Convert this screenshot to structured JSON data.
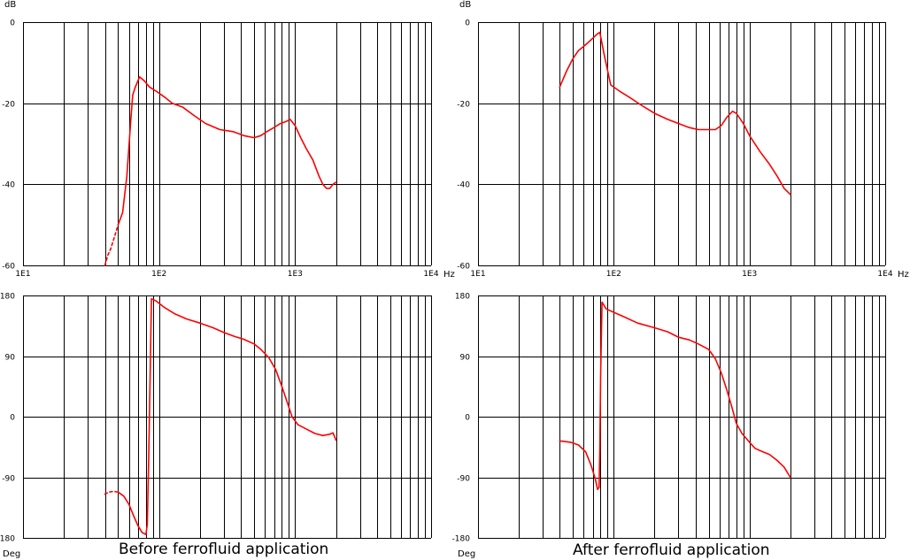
{
  "colors": {
    "curve": "#ff0000",
    "grid": "#000000",
    "background": "#ffffff"
  },
  "captions": {
    "left": "Before ferrofluid application",
    "right": "After ferrofluid application"
  },
  "chart_data": [
    {
      "type": "line",
      "title": "",
      "ylabel": "dB",
      "xlabel": "Hz",
      "xscale": "log",
      "xlim": [
        10,
        10000
      ],
      "ylim": [
        -60,
        0
      ],
      "x_tick_labels": [
        "1E1",
        "1E2",
        "1E3",
        "1E4"
      ],
      "y_tick_labels": [
        "0",
        "-20",
        "-40",
        "-60"
      ],
      "y_ticks": [
        0,
        -20,
        -40,
        -60
      ],
      "grid": true,
      "series": [
        {
          "style": "dashed",
          "points": [
            [
              40,
              -60
            ],
            [
              42,
              -57.5
            ],
            [
              44,
              -56
            ],
            [
              46,
              -54
            ],
            [
              48,
              -52
            ],
            [
              50,
              -50
            ]
          ]
        },
        {
          "style": "solid",
          "points": [
            [
              50,
              -50
            ],
            [
              54,
              -47
            ],
            [
              58,
              -38
            ],
            [
              62,
              -24
            ],
            [
              64,
              -18
            ],
            [
              67,
              -16
            ],
            [
              72,
              -13.5
            ],
            [
              78,
              -14.5
            ],
            [
              85,
              -16
            ],
            [
              95,
              -17
            ],
            [
              110,
              -18.5
            ],
            [
              125,
              -20
            ],
            [
              150,
              -21
            ],
            [
              180,
              -23
            ],
            [
              220,
              -25
            ],
            [
              280,
              -26.5
            ],
            [
              350,
              -27
            ],
            [
              420,
              -28
            ],
            [
              500,
              -28.5
            ],
            [
              560,
              -28
            ],
            [
              620,
              -27
            ],
            [
              700,
              -26
            ],
            [
              780,
              -25
            ],
            [
              860,
              -24.5
            ],
            [
              920,
              -24
            ],
            [
              1000,
              -25.5
            ],
            [
              1100,
              -28.5
            ],
            [
              1200,
              -31
            ],
            [
              1350,
              -34
            ],
            [
              1500,
              -38
            ],
            [
              1600,
              -40
            ],
            [
              1700,
              -41
            ],
            [
              1800,
              -41
            ],
            [
              1900,
              -40
            ],
            [
              2000,
              -39.5
            ]
          ]
        }
      ]
    },
    {
      "type": "line",
      "title": "",
      "ylabel": "dB",
      "xlabel": "Hz",
      "xscale": "log",
      "xlim": [
        10,
        10000
      ],
      "ylim": [
        -60,
        0
      ],
      "x_tick_labels": [
        "1E1",
        "1E2",
        "1E3",
        "1E4"
      ],
      "y_tick_labels": [
        "0",
        "-20",
        "-40",
        "-60"
      ],
      "y_ticks": [
        0,
        -20,
        -40,
        -60
      ],
      "grid": true,
      "series": [
        {
          "style": "solid",
          "points": [
            [
              40,
              -16
            ],
            [
              45,
              -12
            ],
            [
              50,
              -9
            ],
            [
              55,
              -7
            ],
            [
              60,
              -6
            ],
            [
              65,
              -5
            ],
            [
              70,
              -4
            ],
            [
              75,
              -3
            ],
            [
              79,
              -2.5
            ],
            [
              85,
              -8
            ],
            [
              95,
              -15.5
            ],
            [
              110,
              -17
            ],
            [
              130,
              -18.5
            ],
            [
              160,
              -20.5
            ],
            [
              200,
              -22.5
            ],
            [
              250,
              -24
            ],
            [
              300,
              -25
            ],
            [
              360,
              -26
            ],
            [
              420,
              -26.5
            ],
            [
              500,
              -26.5
            ],
            [
              560,
              -26.5
            ],
            [
              620,
              -25.5
            ],
            [
              680,
              -23.5
            ],
            [
              750,
              -22
            ],
            [
              800,
              -22.5
            ],
            [
              900,
              -25
            ],
            [
              1000,
              -28
            ],
            [
              1200,
              -32
            ],
            [
              1400,
              -35
            ],
            [
              1600,
              -38
            ],
            [
              1800,
              -41
            ],
            [
              2000,
              -42.5
            ]
          ]
        }
      ]
    },
    {
      "type": "line",
      "title": "",
      "ylabel": "Deg",
      "xscale": "log",
      "xlim": [
        10,
        10000
      ],
      "ylim": [
        -180,
        180
      ],
      "y_tick_labels": [
        "180",
        "90",
        "0",
        "-90",
        "-180"
      ],
      "y_ticks": [
        180,
        90,
        0,
        -90,
        -180
      ],
      "grid": true,
      "series": [
        {
          "style": "dashed",
          "points": [
            [
              40,
              -115
            ],
            [
              43,
              -112
            ],
            [
              46,
              -111
            ],
            [
              50,
              -112
            ]
          ]
        },
        {
          "style": "solid",
          "points": [
            [
              50,
              -112
            ],
            [
              55,
              -118
            ],
            [
              60,
              -130
            ],
            [
              65,
              -147
            ],
            [
              70,
              -162
            ],
            [
              75,
              -172
            ],
            [
              80,
              -175
            ],
            [
              82,
              -160
            ],
            [
              84,
              -60
            ],
            [
              86,
              60
            ],
            [
              88,
              175
            ],
            [
              95,
              172
            ],
            [
              110,
              162
            ],
            [
              130,
              153
            ],
            [
              160,
              145
            ],
            [
              200,
              139
            ],
            [
              250,
              132
            ],
            [
              300,
              125
            ],
            [
              360,
              119
            ],
            [
              420,
              115
            ],
            [
              500,
              108
            ],
            [
              560,
              100
            ],
            [
              640,
              88
            ],
            [
              720,
              70
            ],
            [
              800,
              45
            ],
            [
              880,
              20
            ],
            [
              950,
              0
            ],
            [
              1050,
              -12
            ],
            [
              1200,
              -18
            ],
            [
              1400,
              -25
            ],
            [
              1600,
              -28
            ],
            [
              1800,
              -26
            ],
            [
              1900,
              -24
            ],
            [
              2000,
              -35
            ]
          ]
        }
      ]
    },
    {
      "type": "line",
      "title": "",
      "ylabel": "Deg",
      "xscale": "log",
      "xlim": [
        10,
        10000
      ],
      "ylim": [
        -180,
        180
      ],
      "y_tick_labels": [
        "180",
        "90",
        "0",
        "-90",
        "-180"
      ],
      "y_ticks": [
        180,
        90,
        0,
        -90,
        -180
      ],
      "grid": true,
      "series": [
        {
          "style": "solid",
          "points": [
            [
              40,
              -36
            ],
            [
              48,
              -38
            ],
            [
              55,
              -42
            ],
            [
              62,
              -52
            ],
            [
              68,
              -72
            ],
            [
              73,
              -92
            ],
            [
              76,
              -108
            ],
            [
              78,
              -105
            ],
            [
              79,
              -50
            ],
            [
              80,
              60
            ],
            [
              82,
              170
            ],
            [
              88,
              160
            ],
            [
              100,
              155
            ],
            [
              120,
              148
            ],
            [
              150,
              139
            ],
            [
              200,
              132
            ],
            [
              250,
              126
            ],
            [
              300,
              118
            ],
            [
              360,
              114
            ],
            [
              420,
              108
            ],
            [
              500,
              100
            ],
            [
              560,
              86
            ],
            [
              620,
              65
            ],
            [
              680,
              40
            ],
            [
              740,
              15
            ],
            [
              800,
              -10
            ],
            [
              880,
              -25
            ],
            [
              1000,
              -38
            ],
            [
              1100,
              -47
            ],
            [
              1250,
              -52
            ],
            [
              1400,
              -56
            ],
            [
              1600,
              -65
            ],
            [
              1800,
              -75
            ],
            [
              2000,
              -90
            ]
          ]
        }
      ]
    }
  ]
}
